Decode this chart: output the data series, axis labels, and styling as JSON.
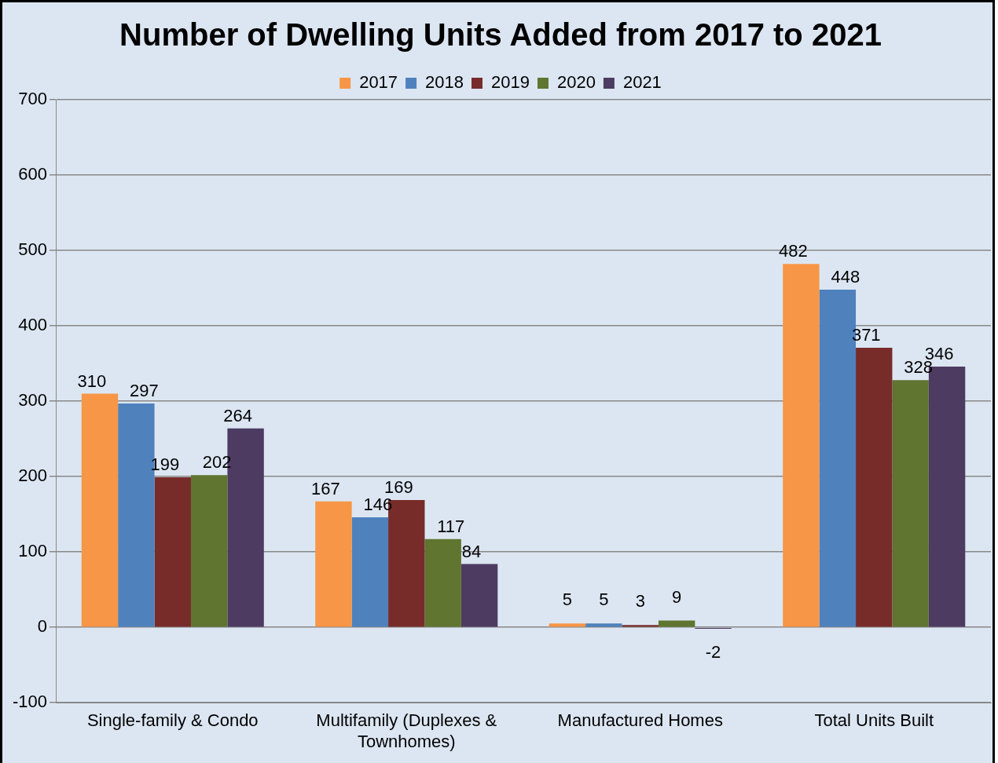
{
  "chart_data": {
    "type": "bar",
    "title": "Number of Dwelling Units Added from 2017 to 2021",
    "categories": [
      "Single-family & Condo",
      "Multifamily (Duplexes & Townhomes)",
      "Manufactured Homes",
      "Total Units Built"
    ],
    "series": [
      {
        "name": "2017",
        "color": "#f79646",
        "values": [
          310,
          167,
          5,
          482
        ]
      },
      {
        "name": "2018",
        "color": "#4f81bd",
        "values": [
          297,
          146,
          5,
          448
        ]
      },
      {
        "name": "2019",
        "color": "#772c2a",
        "values": [
          199,
          169,
          3,
          371
        ]
      },
      {
        "name": "2020",
        "color": "#5f7530",
        "values": [
          202,
          117,
          9,
          328
        ]
      },
      {
        "name": "2021",
        "color": "#4d3b62",
        "values": [
          264,
          84,
          -2,
          346
        ]
      }
    ],
    "ylim": [
      -100,
      700
    ],
    "yticks": [
      -100,
      0,
      100,
      200,
      300,
      400,
      500,
      600,
      700
    ],
    "grid": "y",
    "legend": "top",
    "data_labels": true
  }
}
